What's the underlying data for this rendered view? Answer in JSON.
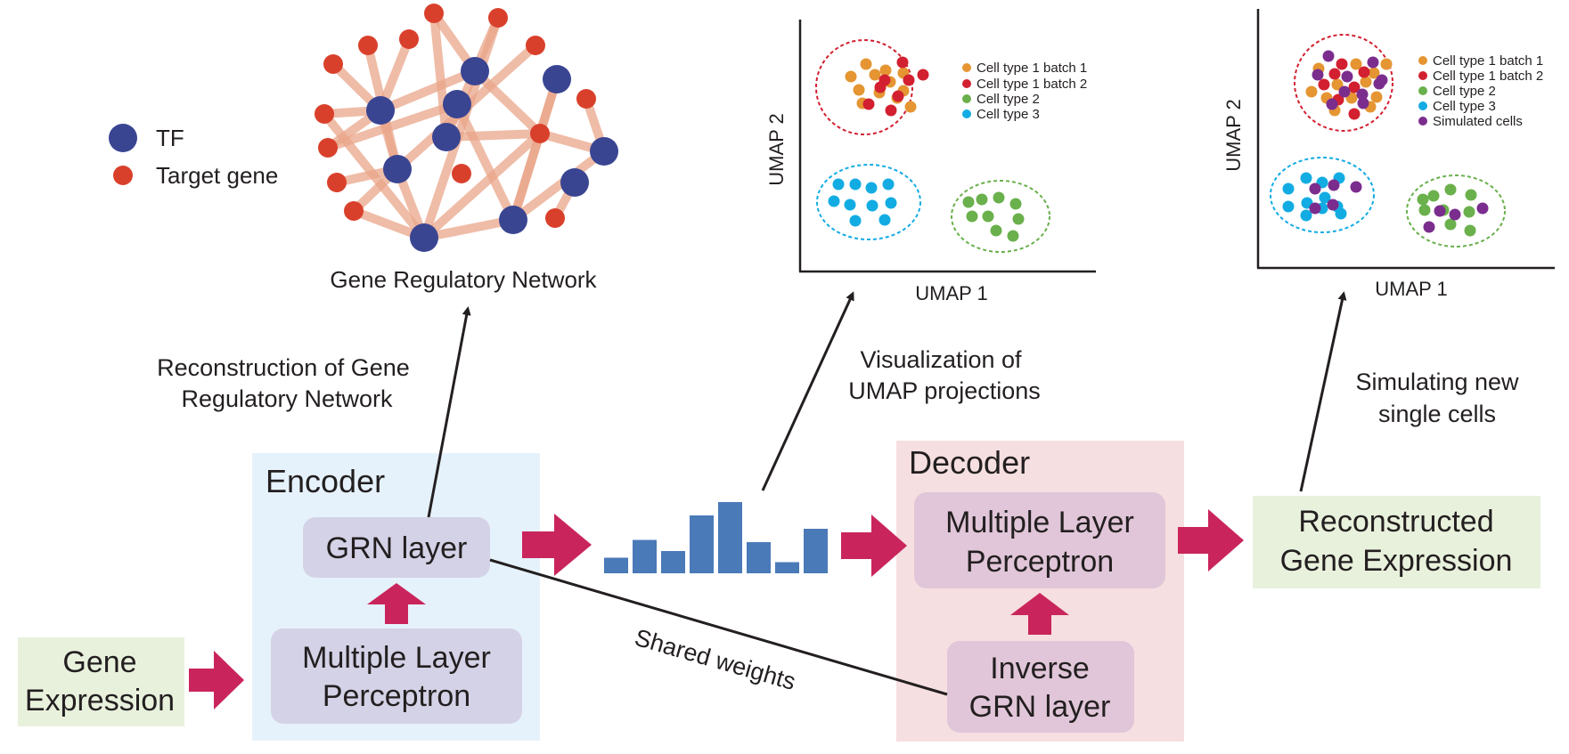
{
  "colors": {
    "tf": "#3a4592",
    "target": "#d9402b",
    "edge": "#eaa689",
    "arrow_pink": "#c9255c",
    "encoder_bg": "#e6f2fb",
    "decoder_bg": "#f6dfe0",
    "layer_box": "#d4d2e6",
    "decoder_layer_box": "#e0c6d8",
    "green_box": "#e8f1dc",
    "latent_bar": "#4a7ab8",
    "line": "#231f20",
    "cell_type1_batch1": "#e59532",
    "cell_type1_batch2": "#d22030",
    "cell_type2": "#6ab04c",
    "cell_type3": "#12ace3",
    "simulated": "#7b2d8e"
  },
  "grn": {
    "title": "Gene Regulatory Network",
    "legend": [
      {
        "label": "TF",
        "kind": "tf"
      },
      {
        "label": "Target gene",
        "kind": "target"
      }
    ]
  },
  "encoder": {
    "title": "Encoder",
    "grn_layer": "GRN layer",
    "mlp_line1": "Multiple Layer",
    "mlp_line2": "Perceptron"
  },
  "decoder": {
    "title": "Decoder",
    "mlp_line1": "Multiple Layer",
    "mlp_line2": "Perceptron",
    "inverse_line1": "Inverse",
    "inverse_line2": "GRN layer"
  },
  "input": {
    "line1": "Gene",
    "line2": "Expression"
  },
  "output": {
    "line1": "Reconstructed",
    "line2": "Gene Expression"
  },
  "latent": {
    "values": [
      0.35,
      0.75,
      0.5,
      1.3,
      1.6,
      0.7,
      0.25,
      1.0
    ]
  },
  "labels": {
    "reconstruction_line1": "Reconstruction of Gene",
    "reconstruction_line2": "Regulatory Network",
    "visualization_line1": "Visualization of",
    "visualization_line2": "UMAP projections",
    "simulating_line1": "Simulating new",
    "simulating_line2": "single cells",
    "shared_weights": "Shared weights"
  },
  "umap1": {
    "xlabel": "UMAP 1",
    "ylabel": "UMAP 2",
    "legend": [
      {
        "label": "Cell type 1 batch 1",
        "kind": "cell_type1_batch1"
      },
      {
        "label": "Cell type 1 batch 2",
        "kind": "cell_type1_batch2"
      },
      {
        "label": "Cell type 2",
        "kind": "cell_type2"
      },
      {
        "label": "Cell type 3",
        "kind": "cell_type3"
      }
    ]
  },
  "umap2": {
    "xlabel": "UMAP 1",
    "ylabel": "UMAP 2",
    "legend": [
      {
        "label": "Cell type 1 batch 1",
        "kind": "cell_type1_batch1"
      },
      {
        "label": "Cell type 1 batch 2",
        "kind": "cell_type1_batch2"
      },
      {
        "label": "Cell type 2",
        "kind": "cell_type2"
      },
      {
        "label": "Cell type 3",
        "kind": "cell_type3"
      },
      {
        "label": "Simulated cells",
        "kind": "simulated"
      }
    ]
  }
}
